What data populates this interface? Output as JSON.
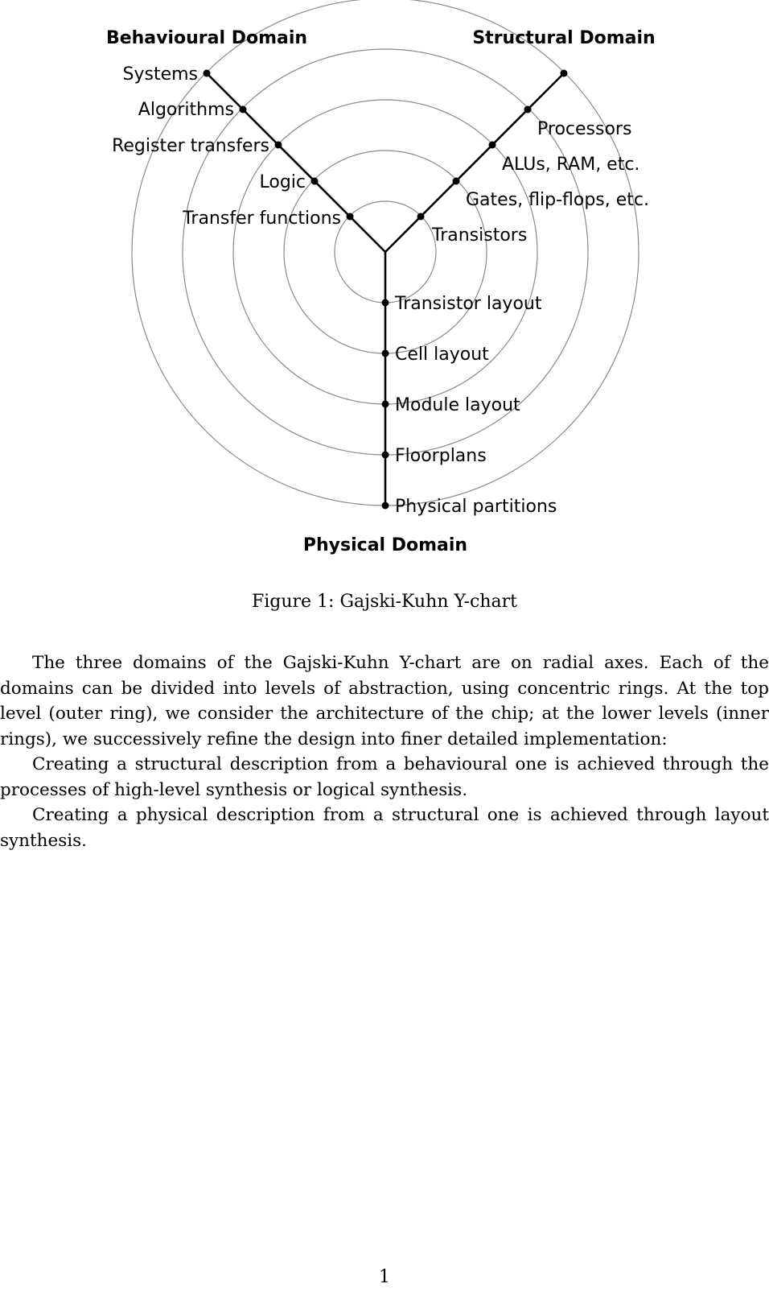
{
  "figure": {
    "domains": {
      "behavioural": "Behavioural Domain",
      "structural": "Structural Domain",
      "physical": "Physical Domain"
    },
    "behavioural_levels": [
      "Systems",
      "Algorithms",
      "Register transfers",
      "Logic",
      "Transfer functions"
    ],
    "structural_levels": [
      "Processors",
      "ALUs, RAM, etc.",
      "Gates, flip-flops, etc.",
      "Transistors"
    ],
    "physical_levels": [
      "Transistor layout",
      "Cell layout",
      "Module layout",
      "Floorplans",
      "Physical partitions"
    ],
    "caption": "Figure 1: Gajski-Kuhn Y-chart"
  },
  "text": {
    "paragraphs": [
      "The three domains of the Gajski-Kuhn Y-chart are on radial axes. Each of the domains can be divided into levels of abstraction, using concentric rings. At the top level (outer ring), we consider the architecture of the chip; at the lower levels (inner rings), we successively refine the design into finer detailed implementation:",
      "Creating a structural description from a behavioural one is achieved through the processes of high-level synthesis or logical synthesis.",
      "Creating a physical description from a structural one is achieved through layout synthesis."
    ]
  },
  "page_number": "1"
}
